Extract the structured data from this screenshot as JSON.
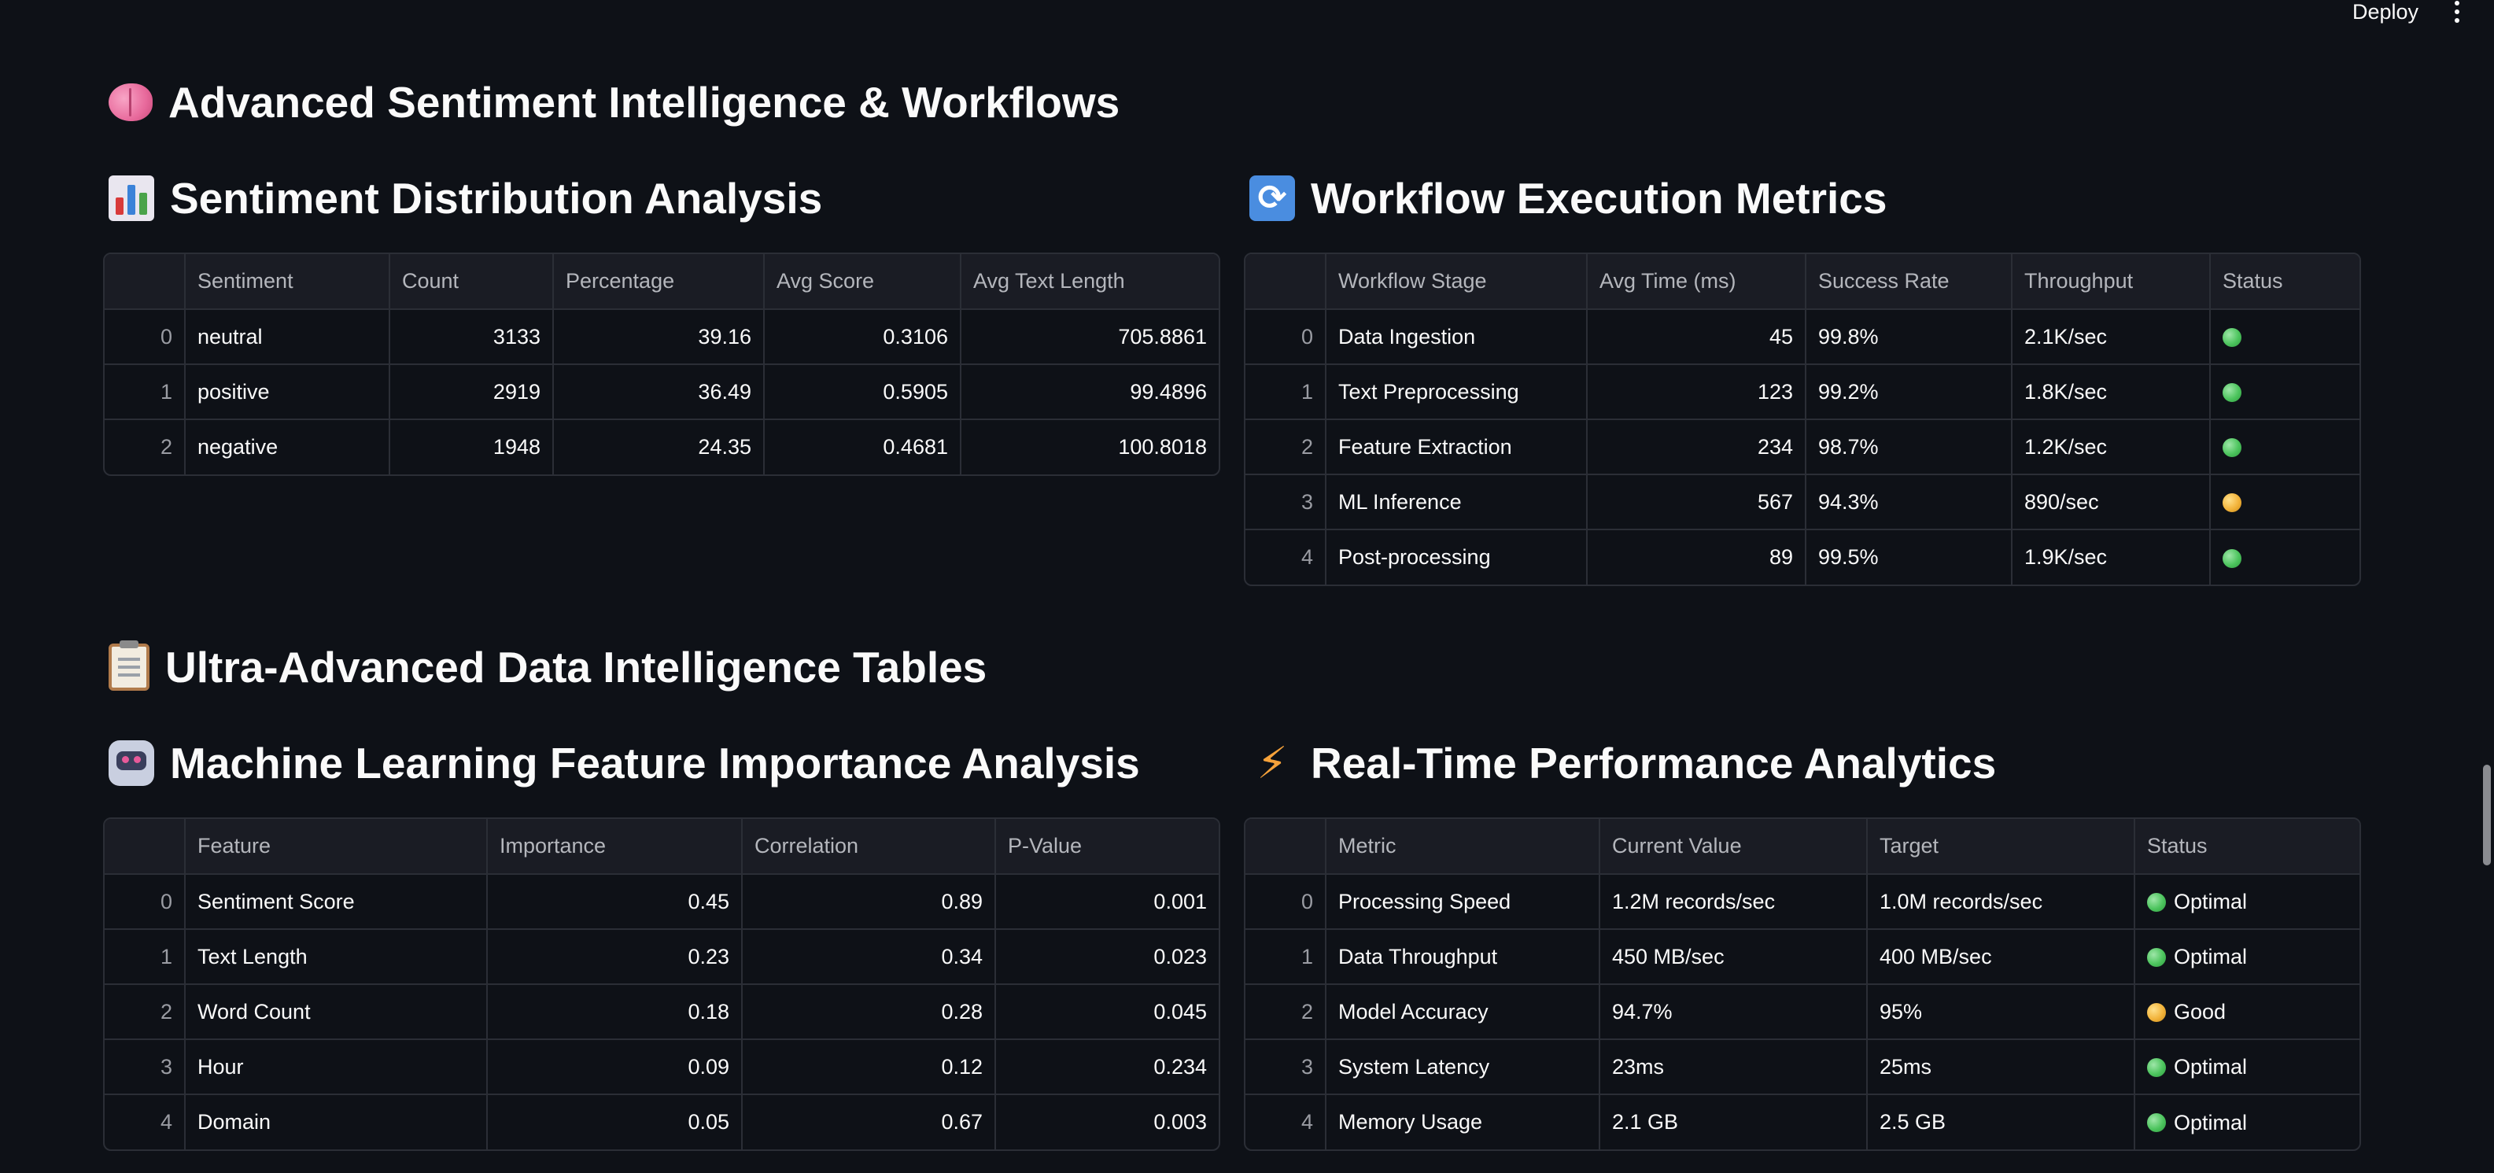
{
  "toolbar": {
    "deploy_label": "Deploy",
    "menu_icon": "kebab-menu-icon"
  },
  "page_title": {
    "icon": "brain-icon",
    "text": "Advanced Sentiment Intelligence & Workflows"
  },
  "sentiment_section": {
    "icon": "bar-chart-icon",
    "title": "Sentiment Distribution Analysis",
    "columns": [
      "",
      "Sentiment",
      "Count",
      "Percentage",
      "Avg Score",
      "Avg Text Length"
    ],
    "rows": [
      [
        "0",
        "neutral",
        "3133",
        "39.16",
        "0.3106",
        "705.8861"
      ],
      [
        "1",
        "positive",
        "2919",
        "36.49",
        "0.5905",
        "99.4896"
      ],
      [
        "2",
        "negative",
        "1948",
        "24.35",
        "0.4681",
        "100.8018"
      ]
    ]
  },
  "workflow_section": {
    "icon": "refresh-icon",
    "title": "Workflow Execution Metrics",
    "columns": [
      "",
      "Workflow Stage",
      "Avg Time (ms)",
      "Success Rate",
      "Throughput",
      "Status"
    ],
    "rows": [
      [
        "0",
        "Data Ingestion",
        "45",
        "99.8%",
        "2.1K/sec",
        "green"
      ],
      [
        "1",
        "Text Preprocessing",
        "123",
        "99.2%",
        "1.8K/sec",
        "green"
      ],
      [
        "2",
        "Feature Extraction",
        "234",
        "98.7%",
        "1.2K/sec",
        "green"
      ],
      [
        "3",
        "ML Inference",
        "567",
        "94.3%",
        "890/sec",
        "yellow"
      ],
      [
        "4",
        "Post-processing",
        "89",
        "99.5%",
        "1.9K/sec",
        "green"
      ]
    ]
  },
  "tables_heading": {
    "icon": "clipboard-icon",
    "text": "Ultra-Advanced Data Intelligence Tables"
  },
  "feature_section": {
    "icon": "robot-icon",
    "title": "Machine Learning Feature Importance Analysis",
    "columns": [
      "",
      "Feature",
      "Importance",
      "Correlation",
      "P-Value"
    ],
    "rows": [
      [
        "0",
        "Sentiment Score",
        "0.45",
        "0.89",
        "0.001"
      ],
      [
        "1",
        "Text Length",
        "0.23",
        "0.34",
        "0.023"
      ],
      [
        "2",
        "Word Count",
        "0.18",
        "0.28",
        "0.045"
      ],
      [
        "3",
        "Hour",
        "0.09",
        "0.12",
        "0.234"
      ],
      [
        "4",
        "Domain",
        "0.05",
        "0.67",
        "0.003"
      ]
    ]
  },
  "performance_section": {
    "icon": "lightning-bolt-icon",
    "title": "Real-Time Performance Analytics",
    "columns": [
      "",
      "Metric",
      "Current Value",
      "Target",
      "Status"
    ],
    "rows": [
      [
        "0",
        "Processing Speed",
        "1.2M records/sec",
        "1.0M records/sec",
        "green",
        "Optimal"
      ],
      [
        "1",
        "Data Throughput",
        "450 MB/sec",
        "400 MB/sec",
        "green",
        "Optimal"
      ],
      [
        "2",
        "Model Accuracy",
        "94.7%",
        "95%",
        "yellow",
        "Good"
      ],
      [
        "3",
        "System Latency",
        "23ms",
        "25ms",
        "green",
        "Optimal"
      ],
      [
        "4",
        "Memory Usage",
        "2.1 GB",
        "2.5 GB",
        "green",
        "Optimal"
      ]
    ]
  },
  "colors": {
    "background": "#0e1117",
    "header_bg": "#1a1c24",
    "border": "#2b2e36",
    "status_green": "#4cc45d",
    "status_yellow": "#f2b33a"
  }
}
